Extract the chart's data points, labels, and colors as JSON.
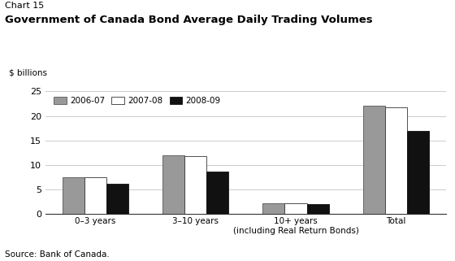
{
  "chart_label": "Chart 15",
  "title": "Government of Canada Bond Average Daily Trading Volumes",
  "ylabel": "$ billions",
  "source": "Source: Bank of Canada.",
  "categories": [
    "0–3 years",
    "3–10 years",
    "10+ years\n(including Real Return Bonds)",
    "Total"
  ],
  "series": {
    "2006-07": [
      7.5,
      12.0,
      2.2,
      22.0
    ],
    "2007-08": [
      7.5,
      11.8,
      2.2,
      21.8
    ],
    "2008-09": [
      6.2,
      8.7,
      2.0,
      16.9
    ]
  },
  "colors": {
    "2006-07": "#999999",
    "2007-08": "#ffffff",
    "2008-09": "#111111"
  },
  "bar_edge_colors": {
    "2006-07": "#555555",
    "2007-08": "#333333",
    "2008-09": "#111111"
  },
  "ylim": [
    0,
    25
  ],
  "yticks": [
    0,
    5,
    10,
    15,
    20,
    25
  ],
  "bar_width": 0.22,
  "background_color": "#ffffff",
  "grid_color": "#cccccc"
}
